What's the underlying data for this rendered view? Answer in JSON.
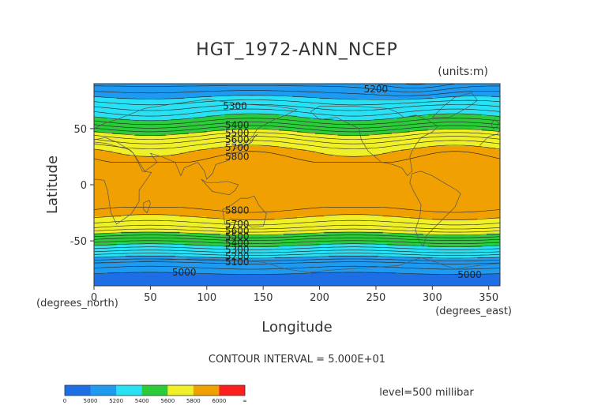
{
  "chart_data": {
    "type": "heatmap",
    "title": "HGT_1972-ANN_NCEP",
    "units_note": "(units:m)",
    "xlabel": "Longitude",
    "ylabel": "Latitude",
    "x_unit_note": "(degrees_east)",
    "y_unit_note": "(degrees_north)",
    "xlim": [
      0,
      360
    ],
    "ylim": [
      -90,
      90
    ],
    "x_ticks": [
      0,
      50,
      100,
      150,
      200,
      250,
      300,
      350
    ],
    "y_ticks": [
      50,
      0,
      -50
    ],
    "contour_interval_text": "CONTOUR INTERVAL = 5.000E+01",
    "level_text": "level=500 millibar",
    "legend": {
      "placement": "bottom-left",
      "labels": [
        "0",
        "5000",
        "5200",
        "5400",
        "5600",
        "5800",
        "6000",
        "∞"
      ],
      "colors": [
        "#1e6fe6",
        "#1e9af0",
        "#28e1f5",
        "#2ccb3a",
        "#f0f028",
        "#f0a000",
        "#ff1e1e"
      ]
    },
    "zonal_profile": [
      {
        "lat": 90,
        "value": 5080
      },
      {
        "lat": 80,
        "value": 5180
      },
      {
        "lat": 70,
        "value": 5290
      },
      {
        "lat": 60,
        "value": 5400
      },
      {
        "lat": 55,
        "value": 5470
      },
      {
        "lat": 50,
        "value": 5550
      },
      {
        "lat": 45,
        "value": 5630
      },
      {
        "lat": 40,
        "value": 5700
      },
      {
        "lat": 35,
        "value": 5760
      },
      {
        "lat": 30,
        "value": 5810
      },
      {
        "lat": 20,
        "value": 5860
      },
      {
        "lat": 0,
        "value": 5880
      },
      {
        "lat": -20,
        "value": 5860
      },
      {
        "lat": -28,
        "value": 5810
      },
      {
        "lat": -33,
        "value": 5760
      },
      {
        "lat": -38,
        "value": 5700
      },
      {
        "lat": -42,
        "value": 5630
      },
      {
        "lat": -46,
        "value": 5550
      },
      {
        "lat": -50,
        "value": 5470
      },
      {
        "lat": -55,
        "value": 5380
      },
      {
        "lat": -60,
        "value": 5290
      },
      {
        "lat": -65,
        "value": 5190
      },
      {
        "lat": -70,
        "value": 5090
      },
      {
        "lat": -80,
        "value": 4990
      },
      {
        "lat": -90,
        "value": 4970
      }
    ],
    "contour_labels": [
      {
        "text": "5200",
        "lon": 250,
        "lat": 85
      },
      {
        "text": "5300",
        "lon": 125,
        "lat": 70
      },
      {
        "text": "5400",
        "lon": 127,
        "lat": 53
      },
      {
        "text": "5500",
        "lon": 127,
        "lat": 46
      },
      {
        "text": "5600",
        "lon": 127,
        "lat": 40
      },
      {
        "text": "5700",
        "lon": 127,
        "lat": 33
      },
      {
        "text": "5800",
        "lon": 127,
        "lat": 25
      },
      {
        "text": "5800",
        "lon": 127,
        "lat": -23
      },
      {
        "text": "5700",
        "lon": 127,
        "lat": -35
      },
      {
        "text": "5600",
        "lon": 127,
        "lat": -41
      },
      {
        "text": "5500",
        "lon": 127,
        "lat": -46
      },
      {
        "text": "5400",
        "lon": 127,
        "lat": -52
      },
      {
        "text": "5300",
        "lon": 127,
        "lat": -58
      },
      {
        "text": "5200",
        "lon": 127,
        "lat": -64
      },
      {
        "text": "5100",
        "lon": 127,
        "lat": -69
      },
      {
        "text": "5000",
        "lon": 80,
        "lat": -78
      },
      {
        "text": "5000",
        "lon": 333,
        "lat": -80
      }
    ]
  }
}
